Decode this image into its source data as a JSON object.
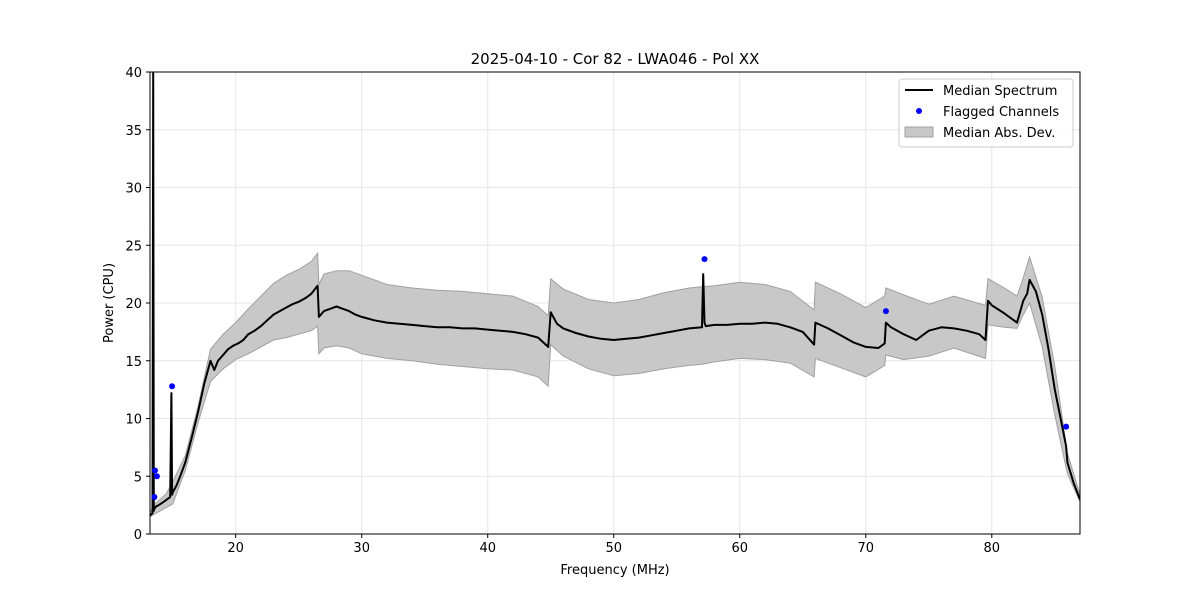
{
  "chart_data": {
    "type": "line",
    "title": "2025-04-10 - Cor 82 - LWA046 - Pol XX",
    "xlabel": "Frequency (MHz)",
    "ylabel": "Power (CPU)",
    "xlim": [
      13.2,
      87.0
    ],
    "ylim": [
      0,
      40
    ],
    "xticks": [
      20,
      30,
      40,
      50,
      60,
      70,
      80
    ],
    "yticks": [
      0,
      5,
      10,
      15,
      20,
      25,
      30,
      35,
      40
    ],
    "grid": true,
    "legend_position": "top-right",
    "legend": [
      "Median Spectrum",
      "Flagged Channels",
      "Median Abs. Dev."
    ],
    "colors": {
      "median": "#000000",
      "flagged": "#0000ff",
      "mad_fill": "#c8c8c8",
      "mad_edge": "#a0a0a0"
    },
    "series": [
      {
        "name": "Median Spectrum",
        "x": [
          13.2,
          13.4,
          13.45,
          13.5,
          13.55,
          13.7,
          13.9,
          14.3,
          14.8,
          14.9,
          14.95,
          15.0,
          15.3,
          15.6,
          16.0,
          16.5,
          17.0,
          17.5,
          18.0,
          18.3,
          18.6,
          19.0,
          19.4,
          19.8,
          20.2,
          20.6,
          21.0,
          21.5,
          22.0,
          22.5,
          23.0,
          23.5,
          24.0,
          24.5,
          25.0,
          25.5,
          26.0,
          26.5,
          26.6,
          27.0,
          27.5,
          28.0,
          28.5,
          29.0,
          29.5,
          30.0,
          31.0,
          32.0,
          33.0,
          34.0,
          35.0,
          36.0,
          37.0,
          38.0,
          39.0,
          40.0,
          41.0,
          42.0,
          43.0,
          44.0,
          44.8,
          45.0,
          45.5,
          46.0,
          47.0,
          48.0,
          49.0,
          50.0,
          51.0,
          52.0,
          53.0,
          54.0,
          55.0,
          56.0,
          57.0,
          57.1,
          57.2,
          57.3,
          58.0,
          59.0,
          60.0,
          61.0,
          62.0,
          63.0,
          64.0,
          65.0,
          65.9,
          66.0,
          67.0,
          68.0,
          69.0,
          70.0,
          71.0,
          71.5,
          71.6,
          72.0,
          73.0,
          74.0,
          75.0,
          76.0,
          77.0,
          78.0,
          79.0,
          79.5,
          79.7,
          80.0,
          81.0,
          82.0,
          82.5,
          82.8,
          83.0,
          83.5,
          84.0,
          84.5,
          85.0,
          85.5,
          85.9,
          86.0,
          86.5,
          87.0
        ],
        "values": [
          1.6,
          1.8,
          40.0,
          2.0,
          2.2,
          2.4,
          2.5,
          2.8,
          3.2,
          12.2,
          3.4,
          3.6,
          4.2,
          5.0,
          6.2,
          8.3,
          10.5,
          13.0,
          15.0,
          14.2,
          15.0,
          15.5,
          16.0,
          16.3,
          16.5,
          16.8,
          17.3,
          17.6,
          18.0,
          18.5,
          19.0,
          19.3,
          19.6,
          19.9,
          20.1,
          20.4,
          20.8,
          21.5,
          18.8,
          19.3,
          19.5,
          19.7,
          19.5,
          19.3,
          19.0,
          18.8,
          18.5,
          18.3,
          18.2,
          18.1,
          18.0,
          17.9,
          17.9,
          17.8,
          17.8,
          17.7,
          17.6,
          17.5,
          17.3,
          17.0,
          16.2,
          19.2,
          18.2,
          17.8,
          17.4,
          17.1,
          16.9,
          16.8,
          16.9,
          17.0,
          17.2,
          17.4,
          17.6,
          17.8,
          17.9,
          22.5,
          18.3,
          18.0,
          18.1,
          18.1,
          18.2,
          18.2,
          18.3,
          18.2,
          17.9,
          17.5,
          16.4,
          18.3,
          17.8,
          17.2,
          16.6,
          16.2,
          16.1,
          16.5,
          18.3,
          17.9,
          17.3,
          16.8,
          17.6,
          17.9,
          17.8,
          17.6,
          17.3,
          16.8,
          20.2,
          19.8,
          19.1,
          18.3,
          20.2,
          20.8,
          22.0,
          21.0,
          19.0,
          16.0,
          12.5,
          9.8,
          7.6,
          6.2,
          4.4,
          3.0
        ]
      },
      {
        "name": "Flagged Channels",
        "x": [
          13.55,
          13.6,
          13.75,
          14.95,
          57.2,
          71.6,
          85.9
        ],
        "values": [
          3.2,
          5.5,
          5.0,
          12.8,
          23.8,
          19.3,
          9.3
        ]
      },
      {
        "name": "Median Abs. Dev.",
        "x": [
          13.2,
          13.5,
          14.0,
          14.5,
          15.0,
          16.0,
          17.0,
          18.0,
          19.0,
          20.0,
          21.0,
          22.0,
          23.0,
          24.0,
          25.0,
          26.0,
          26.5,
          26.6,
          27.0,
          28.0,
          29.0,
          30.0,
          32.0,
          34.0,
          36.0,
          38.0,
          40.0,
          42.0,
          44.0,
          44.8,
          45.0,
          46.0,
          48.0,
          50.0,
          52.0,
          54.0,
          56.0,
          57.0,
          58.0,
          60.0,
          62.0,
          64.0,
          65.9,
          66.0,
          68.0,
          70.0,
          71.5,
          71.6,
          73.0,
          75.0,
          77.0,
          79.5,
          79.7,
          81.0,
          82.0,
          82.5,
          83.0,
          84.0,
          85.0,
          86.0,
          87.0
        ],
        "upper": [
          1.8,
          2.5,
          3.0,
          3.5,
          4.5,
          6.8,
          11.0,
          16.0,
          17.3,
          18.3,
          19.5,
          20.6,
          21.7,
          22.4,
          22.9,
          23.6,
          24.3,
          21.6,
          22.5,
          22.8,
          22.8,
          22.4,
          21.6,
          21.3,
          21.1,
          21.0,
          20.8,
          20.6,
          19.7,
          18.9,
          22.1,
          21.2,
          20.3,
          20.0,
          20.3,
          20.9,
          21.3,
          21.4,
          21.5,
          21.8,
          21.6,
          21.0,
          19.4,
          21.8,
          20.8,
          19.6,
          20.6,
          21.3,
          20.7,
          19.9,
          20.6,
          19.8,
          22.1,
          21.3,
          20.6,
          22.2,
          24.0,
          20.5,
          14.5,
          7.0,
          3.4
        ],
        "lower": [
          1.5,
          1.7,
          2.0,
          2.3,
          2.6,
          5.5,
          9.6,
          13.2,
          14.3,
          15.1,
          15.6,
          16.2,
          16.8,
          17.0,
          17.3,
          17.6,
          18.0,
          15.6,
          16.1,
          16.3,
          16.1,
          15.6,
          15.2,
          15.0,
          14.7,
          14.5,
          14.3,
          14.2,
          13.6,
          12.8,
          16.4,
          15.4,
          14.3,
          13.7,
          13.9,
          14.3,
          14.6,
          14.7,
          14.9,
          15.2,
          15.1,
          14.8,
          13.6,
          15.2,
          14.4,
          13.6,
          14.6,
          15.5,
          15.1,
          15.4,
          16.1,
          15.2,
          18.1,
          17.9,
          17.8,
          19.0,
          20.0,
          16.2,
          10.3,
          5.2,
          2.8
        ]
      }
    ]
  }
}
